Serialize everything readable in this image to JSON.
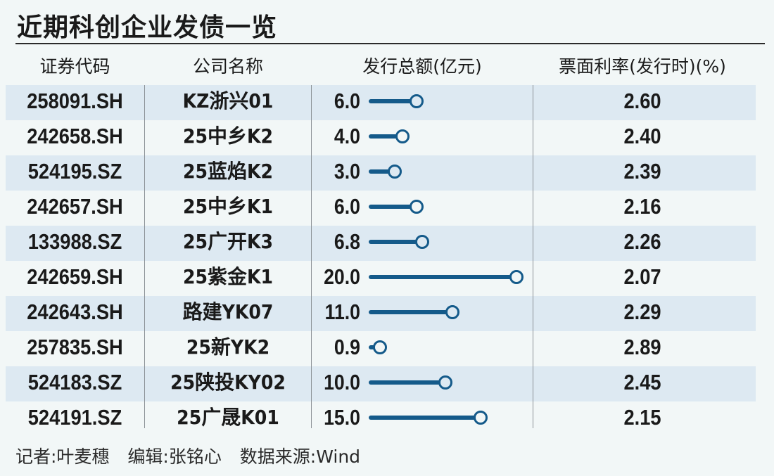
{
  "title": "近期科创企业发债一览",
  "headers": {
    "code": "证券代码",
    "name": "公司名称",
    "amount": "发行总额(亿元)",
    "rate": "票面利率(发行时)(%)"
  },
  "rows": [
    {
      "code": "258091.SH",
      "name": "KZ浙兴01",
      "amount": "6.0",
      "amount_value": 6.0,
      "rate": "2.60"
    },
    {
      "code": "242658.SH",
      "name": "25中乡K2",
      "amount": "4.0",
      "amount_value": 4.0,
      "rate": "2.40"
    },
    {
      "code": "524195.SZ",
      "name": "25蓝焰K2",
      "amount": "3.0",
      "amount_value": 3.0,
      "rate": "2.39"
    },
    {
      "code": "242657.SH",
      "name": "25中乡K1",
      "amount": "6.0",
      "amount_value": 6.0,
      "rate": "2.16"
    },
    {
      "code": "133988.SZ",
      "name": "25广开K3",
      "amount": "6.8",
      "amount_value": 6.8,
      "rate": "2.26"
    },
    {
      "code": "242659.SH",
      "name": "25紫金K1",
      "amount": "20.0",
      "amount_value": 20.0,
      "rate": "2.07"
    },
    {
      "code": "242643.SH",
      "name": "路建YK07",
      "amount": "11.0",
      "amount_value": 11.0,
      "rate": "2.29"
    },
    {
      "code": "257835.SH",
      "name": "25新YK2",
      "amount": "0.9",
      "amount_value": 0.9,
      "rate": "2.89"
    },
    {
      "code": "524183.SZ",
      "name": "25陕投KY02",
      "amount": "10.0",
      "amount_value": 10.0,
      "rate": "2.45"
    },
    {
      "code": "524191.SZ",
      "name": "25广晟K01",
      "amount": "15.0",
      "amount_value": 15.0,
      "rate": "2.15"
    }
  ],
  "footer": {
    "reporter": "记者:叶麦穗",
    "editor": "编辑:张铭心",
    "source": "数据来源:Wind"
  },
  "colors": {
    "bar": "#145a8a",
    "band": "#dde9f2",
    "background": "#f2f7f7"
  },
  "chart_data": {
    "type": "table",
    "title": "近期科创企业发债一览",
    "columns": [
      "证券代码",
      "公司名称",
      "发行总额(亿元)",
      "票面利率(发行时)(%)"
    ],
    "categories": [
      "KZ浙兴01",
      "25中乡K2",
      "25蓝焰K2",
      "25中乡K1",
      "25广开K3",
      "25紫金K1",
      "路建YK07",
      "25新YK2",
      "25陕投KY02",
      "25广晟K01"
    ],
    "codes": [
      "258091.SH",
      "242658.SH",
      "524195.SZ",
      "242657.SH",
      "133988.SZ",
      "242659.SH",
      "242643.SH",
      "257835.SH",
      "524183.SZ",
      "524191.SZ"
    ],
    "series": [
      {
        "name": "发行总额(亿元)",
        "values": [
          6.0,
          4.0,
          3.0,
          6.0,
          6.8,
          20.0,
          11.0,
          0.9,
          10.0,
          15.0
        ],
        "rendering": "lollipop"
      },
      {
        "name": "票面利率(发行时)(%)",
        "values": [
          2.6,
          2.4,
          2.39,
          2.16,
          2.26,
          2.07,
          2.29,
          2.89,
          2.45,
          2.15
        ]
      }
    ],
    "source": "Wind",
    "xlabel": "",
    "ylabel": ""
  }
}
